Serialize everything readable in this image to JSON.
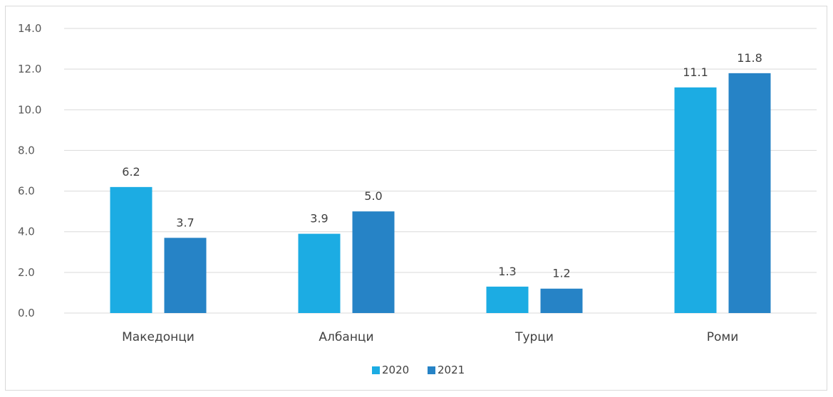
{
  "chart_data": {
    "type": "bar",
    "categories": [
      "Македонци",
      "Албанци",
      "Турци",
      "Роми"
    ],
    "series": [
      {
        "name": "2020",
        "color": "#1cace3",
        "values": [
          6.2,
          3.9,
          1.3,
          11.1
        ],
        "labels": [
          "6.2",
          "3.9",
          "1.3",
          "11.1"
        ]
      },
      {
        "name": "2021",
        "color": "#2683c6",
        "values": [
          3.7,
          5.0,
          1.2,
          11.8
        ],
        "labels": [
          "3.7",
          "5.0",
          "1.2",
          "11.8"
        ]
      }
    ],
    "yticks": [
      "0.0",
      "2.0",
      "4.0",
      "6.0",
      "8.0",
      "10.0",
      "12.0",
      "14.0"
    ],
    "ylim": [
      0,
      14
    ],
    "grid": true,
    "legend_position": "bottom",
    "colors": {
      "grid": "#d9d9d9",
      "text": "#404040"
    }
  }
}
